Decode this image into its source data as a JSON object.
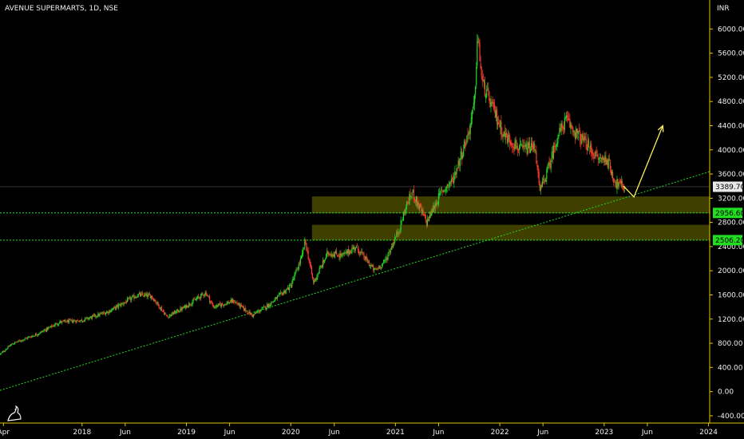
{
  "header": {
    "title": "AVENUE SUPERMARTS, 1D, NSE"
  },
  "chart_data": {
    "type": "candlestick",
    "currency_label": "INR",
    "y_ticks": [
      6000,
      5600,
      5200,
      4800,
      4400,
      4000,
      3600,
      3200,
      2800,
      2400,
      2000,
      1600,
      1200,
      800,
      400,
      0,
      -400
    ],
    "y_tick_labels": [
      "6000.00",
      "5600.00",
      "5200.00",
      "4800.00",
      "4400.00",
      "4000.00",
      "3600.00",
      "3200.00",
      "2800.00",
      "2400.00",
      "2000.00",
      "1600.00",
      "1200.00",
      "800.00",
      "400.00",
      "0.00",
      "-400.00"
    ],
    "ylim": [
      -520,
      6480
    ],
    "x_ticks": [
      "2017-04-01",
      "2018-01-01",
      "2018-06-01",
      "2019-01-01",
      "2019-06-01",
      "2020-01-01",
      "2020-06-01",
      "2021-01-01",
      "2021-06-01",
      "2022-01-01",
      "2022-06-01",
      "2023-01-01",
      "2023-06-01",
      "2024-01-01"
    ],
    "x_tick_labels": [
      "Apr",
      "2018",
      "Jun",
      "2019",
      "Jun",
      "2020",
      "Jun",
      "2021",
      "Jun",
      "2022",
      "Jun",
      "2023",
      "Jun",
      "2024"
    ],
    "xlim": [
      "2017-03-20",
      "2024-01-05"
    ],
    "price_path": [
      [
        "2017-03-21",
        620
      ],
      [
        "2017-05-01",
        790
      ],
      [
        "2017-08-01",
        960
      ],
      [
        "2017-10-15",
        1150
      ],
      [
        "2018-01-01",
        1180
      ],
      [
        "2018-04-01",
        1320
      ],
      [
        "2018-07-15",
        1600
      ],
      [
        "2018-09-01",
        1580
      ],
      [
        "2018-10-25",
        1240
      ],
      [
        "2018-12-20",
        1380
      ],
      [
        "2019-03-10",
        1640
      ],
      [
        "2019-04-05",
        1400
      ],
      [
        "2019-06-15",
        1500
      ],
      [
        "2019-08-20",
        1260
      ],
      [
        "2019-10-20",
        1450
      ],
      [
        "2020-01-01",
        1750
      ],
      [
        "2020-02-10",
        2250
      ],
      [
        "2020-02-20",
        2500
      ],
      [
        "2020-03-20",
        1800
      ],
      [
        "2020-05-10",
        2300
      ],
      [
        "2020-07-01",
        2250
      ],
      [
        "2020-08-15",
        2400
      ],
      [
        "2020-10-20",
        2000
      ],
      [
        "2020-11-25",
        2150
      ],
      [
        "2021-01-15",
        2700
      ],
      [
        "2021-02-10",
        3100
      ],
      [
        "2021-03-01",
        3300
      ],
      [
        "2021-04-20",
        2800
      ],
      [
        "2021-06-10",
        3300
      ],
      [
        "2021-07-20",
        3500
      ],
      [
        "2021-09-15",
        4300
      ],
      [
        "2021-10-05",
        4800
      ],
      [
        "2021-10-15",
        5900
      ],
      [
        "2021-11-01",
        5100
      ],
      [
        "2021-12-15",
        4600
      ],
      [
        "2022-01-15",
        4250
      ],
      [
        "2022-03-15",
        4000
      ],
      [
        "2022-05-05",
        4050
      ],
      [
        "2022-05-20",
        3300
      ],
      [
        "2022-06-20",
        3700
      ],
      [
        "2022-07-20",
        4200
      ],
      [
        "2022-08-20",
        4500
      ],
      [
        "2022-09-20",
        4300
      ],
      [
        "2022-10-30",
        4100
      ],
      [
        "2022-12-10",
        3850
      ],
      [
        "2023-01-10",
        3850
      ],
      [
        "2023-02-10",
        3450
      ],
      [
        "2023-03-15",
        3390
      ]
    ],
    "last_price": {
      "value": 3389.7,
      "label": "3389.70"
    },
    "levels": [
      {
        "value": 2956.6,
        "label": "2956.60"
      },
      {
        "value": 2506.2,
        "label": "2506.20"
      }
    ],
    "zones": [
      {
        "from": 2950,
        "to": 3230
      },
      {
        "from": 2500,
        "to": 2760
      }
    ],
    "trendline": {
      "start": [
        "2017-03-20",
        20
      ],
      "end": [
        "2024-01-05",
        3640
      ]
    },
    "projection": [
      [
        "2023-03-10",
        3400
      ],
      [
        "2023-04-15",
        3220
      ],
      [
        "2023-07-25",
        4400
      ]
    ],
    "colors": {
      "up": "#26d126",
      "down": "#ff3b2f",
      "zone": "#4a4a00",
      "levels": "#22dd22",
      "projection": "#ffee55",
      "axis": "#e6c800",
      "background": "#000000",
      "last_price_line": "#555555"
    }
  }
}
